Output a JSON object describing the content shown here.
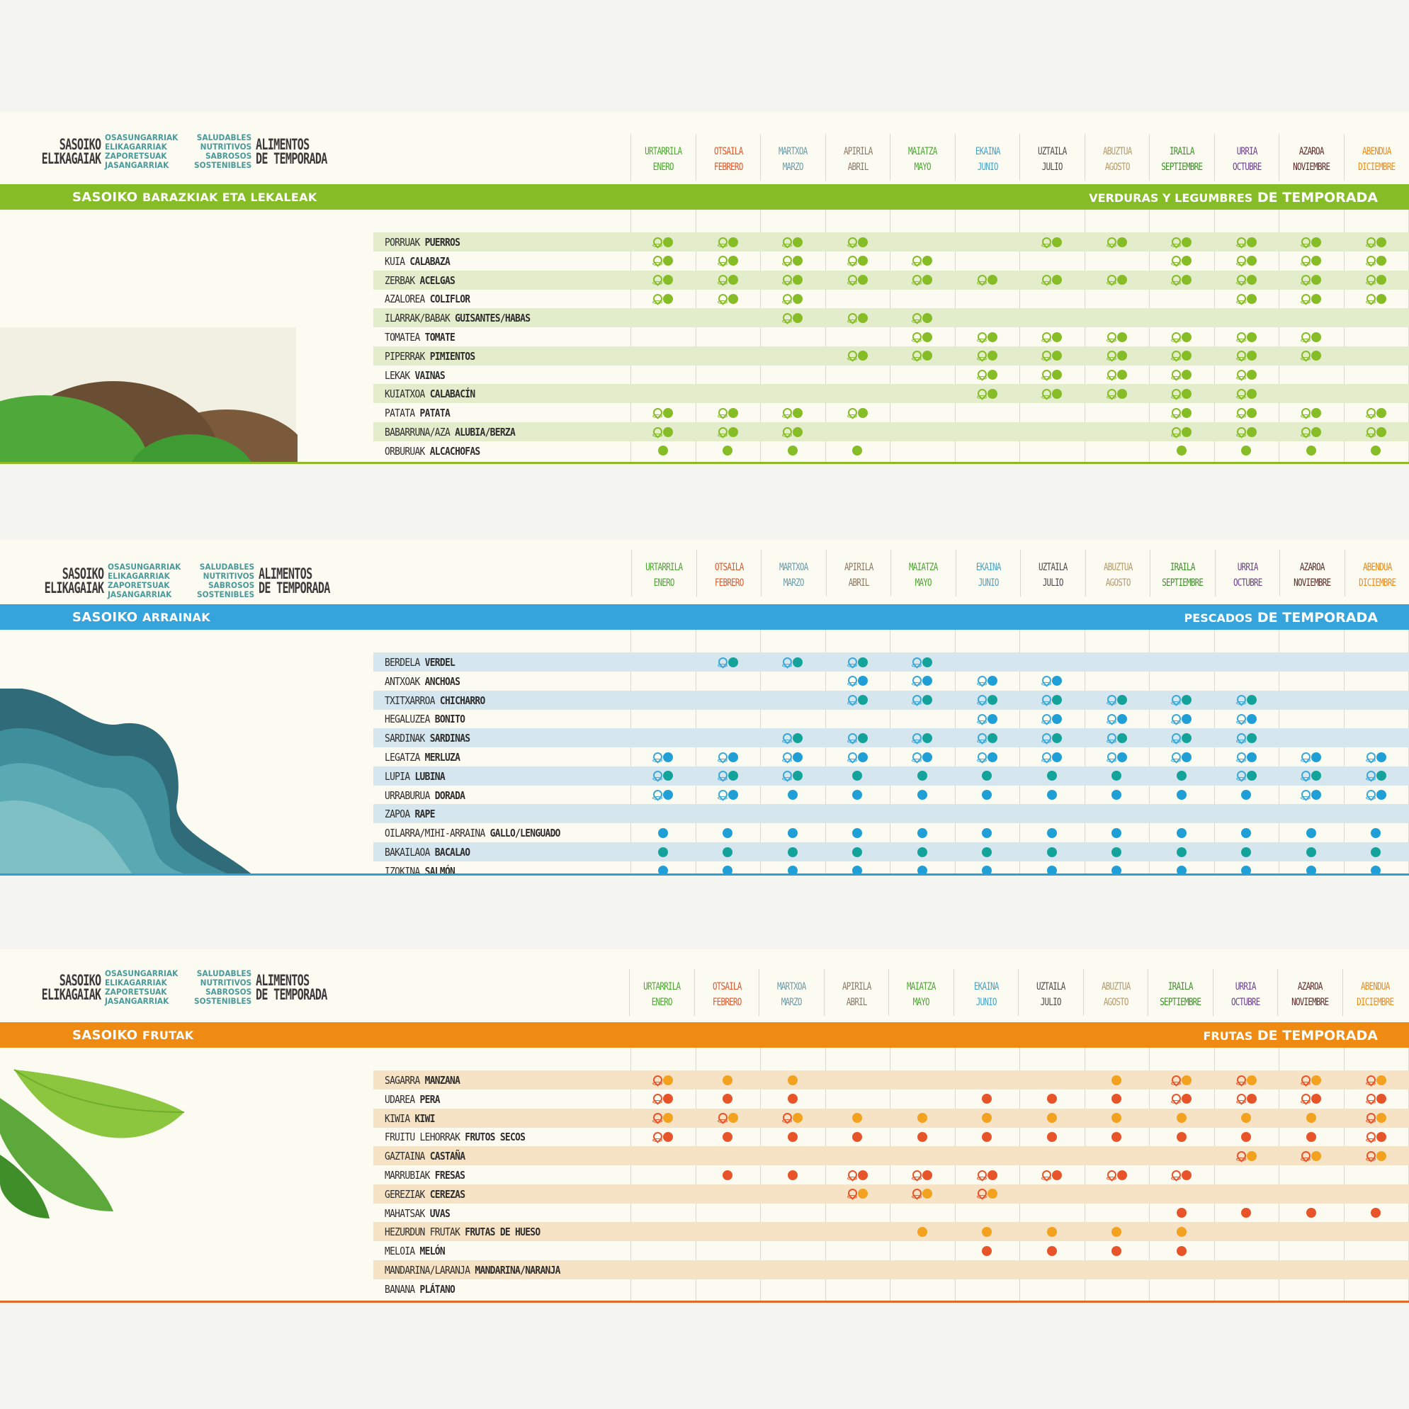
{
  "brand": {
    "title_eu_1": "SASOIKO",
    "title_eu_2": "ELIKAGAIAK",
    "adj_eu": [
      "OSASUNGARRIAK",
      "ELIKAGARRIAK",
      "ZAPORETSUAK",
      "JASANGARRIAK"
    ],
    "adj_es": [
      "SALUDABLES",
      "NUTRITIVOS",
      "SABROSOS",
      "SOSTENIBLES"
    ],
    "title_es_1": "ALIMENTOS",
    "title_es_2": "DE TEMPORADA"
  },
  "months": [
    {
      "eu": "URTARRILA",
      "es": "ENERO",
      "color": "#4aa630"
    },
    {
      "eu": "OTSAILA",
      "es": "FEBRERO",
      "color": "#e0562b"
    },
    {
      "eu": "MARTXOA",
      "es": "MARZO",
      "color": "#6a9aa8"
    },
    {
      "eu": "APIRILA",
      "es": "ABRIL",
      "color": "#8a7864"
    },
    {
      "eu": "MAIATZA",
      "es": "MAYO",
      "color": "#4aa630"
    },
    {
      "eu": "EKAINA",
      "es": "JUNIO",
      "color": "#4aa2c4"
    },
    {
      "eu": "UZTAILA",
      "es": "JULIO",
      "color": "#4a4a4a"
    },
    {
      "eu": "ABUZTUA",
      "es": "AGOSTO",
      "color": "#b59a6a"
    },
    {
      "eu": "IRAILA",
      "es": "SEPTIEMBRE",
      "color": "#3f8e2a"
    },
    {
      "eu": "URRIA",
      "es": "OCTUBRE",
      "color": "#6a3f8a"
    },
    {
      "eu": "AZAROA",
      "es": "NOVIEMBRE",
      "color": "#5a2a2a"
    },
    {
      "eu": "ABENDUA",
      "es": "DICIEMBRE",
      "color": "#e88a1a"
    }
  ],
  "sections": [
    {
      "band_left_a": "SASOIKO",
      "band_left_b": "BARAZKIAK ETA LEKALEAK",
      "band_right_a": "VERDURAS Y LEGUMBRES",
      "band_right_b": "DE TEMPORADA",
      "band_color": "#86bc25",
      "dot_color": "#86bc25",
      "pin_color": "#86bc25",
      "shade_color": "#e3edcc",
      "rows": [
        {
          "eu": "PORRUAK",
          "es": "PUERROS",
          "m": [
            2,
            2,
            2,
            2,
            0,
            0,
            2,
            2,
            2,
            2,
            2,
            2
          ]
        },
        {
          "eu": "KUIA",
          "es": "CALABAZA",
          "m": [
            2,
            2,
            2,
            2,
            2,
            0,
            0,
            0,
            2,
            2,
            2,
            2
          ]
        },
        {
          "eu": "ZERBAK",
          "es": "ACELGAS",
          "m": [
            2,
            2,
            2,
            2,
            2,
            2,
            2,
            2,
            2,
            2,
            2,
            2
          ]
        },
        {
          "eu": "AZALOREA",
          "es": "COLIFLOR",
          "m": [
            2,
            2,
            2,
            0,
            0,
            0,
            0,
            0,
            0,
            2,
            2,
            2
          ]
        },
        {
          "eu": "ILARRAK/BABAK",
          "es": "GUISANTES/HABAS",
          "m": [
            0,
            0,
            2,
            2,
            2,
            0,
            0,
            0,
            0,
            0,
            0,
            0
          ]
        },
        {
          "eu": "TOMATEA",
          "es": "TOMATE",
          "m": [
            0,
            0,
            0,
            0,
            2,
            2,
            2,
            2,
            2,
            2,
            2,
            0
          ]
        },
        {
          "eu": "PIPERRAK",
          "es": "PIMIENTOS",
          "m": [
            0,
            0,
            0,
            2,
            2,
            2,
            2,
            2,
            2,
            2,
            2,
            0
          ]
        },
        {
          "eu": "LEKAK",
          "es": "VAINAS",
          "m": [
            0,
            0,
            0,
            0,
            0,
            2,
            2,
            2,
            2,
            2,
            0,
            0
          ]
        },
        {
          "eu": "KUIATXOA",
          "es": "CALABACÍN",
          "m": [
            0,
            0,
            0,
            0,
            0,
            2,
            2,
            2,
            2,
            2,
            0,
            0
          ]
        },
        {
          "eu": "PATATA",
          "es": "PATATA",
          "m": [
            2,
            2,
            2,
            2,
            0,
            0,
            0,
            0,
            2,
            2,
            2,
            2
          ]
        },
        {
          "eu": "BABARRUNA/AZA",
          "es": "ALUBIA/BERZA",
          "m": [
            2,
            2,
            2,
            0,
            0,
            0,
            0,
            0,
            2,
            2,
            2,
            2
          ]
        },
        {
          "eu": "ORBURUAK",
          "es": "ALCACHOFAS",
          "m": [
            1,
            1,
            1,
            1,
            0,
            0,
            0,
            0,
            1,
            1,
            1,
            1
          ]
        }
      ]
    },
    {
      "band_left_a": "SASOIKO",
      "band_left_b": "ARRAINAK",
      "band_right_a": "PESCADOS",
      "band_right_b": "DE TEMPORADA",
      "band_color": "#35a4dc",
      "dot_color": "#1f9fd6",
      "dot_color_2": "#14a39a",
      "pin_color": "#3aa8d8",
      "shade_color": "#d5e6ee",
      "rows": [
        {
          "eu": "BERDELA",
          "es": "VERDEL",
          "m": [
            0,
            3,
            3,
            3,
            3,
            0,
            0,
            0,
            0,
            0,
            0,
            0
          ]
        },
        {
          "eu": "ANTXOAK",
          "es": "ANCHOAS",
          "m": [
            0,
            0,
            0,
            2,
            2,
            2,
            2,
            0,
            0,
            0,
            0,
            0
          ]
        },
        {
          "eu": "TXITXARROA",
          "es": "CHICHARRO",
          "m": [
            0,
            0,
            0,
            3,
            3,
            3,
            3,
            3,
            3,
            3,
            0,
            0
          ]
        },
        {
          "eu": "HEGALUZEA",
          "es": "BONITO",
          "m": [
            0,
            0,
            0,
            0,
            0,
            2,
            2,
            2,
            2,
            2,
            0,
            0
          ]
        },
        {
          "eu": "SARDINAK",
          "es": "SARDINAS",
          "m": [
            0,
            0,
            3,
            3,
            3,
            3,
            3,
            3,
            3,
            3,
            0,
            0
          ]
        },
        {
          "eu": "LEGATZA",
          "es": "MERLUZA",
          "m": [
            2,
            2,
            2,
            2,
            2,
            2,
            2,
            2,
            2,
            2,
            2,
            2
          ]
        },
        {
          "eu": "LUPIA",
          "es": "LUBINA",
          "m": [
            3,
            3,
            3,
            4,
            4,
            4,
            4,
            4,
            4,
            3,
            3,
            3
          ]
        },
        {
          "eu": "URRABURUA",
          "es": "DORADA",
          "m": [
            2,
            2,
            1,
            1,
            1,
            1,
            1,
            1,
            1,
            1,
            2,
            2
          ]
        },
        {
          "eu": "ZAPOA",
          "es": "RAPE",
          "m": [
            0,
            0,
            0,
            0,
            0,
            0,
            0,
            0,
            0,
            0,
            0,
            0
          ]
        },
        {
          "eu": "OILARRA/MIHI-ARRAINA",
          "es": "GALLO/LENGUADO",
          "m": [
            1,
            1,
            1,
            1,
            1,
            1,
            1,
            1,
            1,
            1,
            1,
            1
          ]
        },
        {
          "eu": "BAKAILAOA",
          "es": "BACALAO",
          "m": [
            4,
            4,
            4,
            4,
            4,
            4,
            4,
            4,
            4,
            4,
            4,
            4
          ]
        },
        {
          "eu": "IZOKINA",
          "es": "SALMÓN",
          "m": [
            1,
            1,
            1,
            1,
            1,
            1,
            1,
            1,
            1,
            1,
            1,
            1
          ]
        }
      ]
    },
    {
      "band_left_a": "SASOIKO",
      "band_left_b": "FRUTAK",
      "band_right_a": "FRUTAS",
      "band_right_b": "DE TEMPORADA",
      "band_color": "#ef8a12",
      "dot_color": "#f3a21f",
      "dot_color_2": "#e8542a",
      "pin_color": "#e8542a",
      "shade_color": "#f6e2c4",
      "rows": [
        {
          "eu": "SAGARRA",
          "es": "MANZANA",
          "m": [
            2,
            1,
            1,
            0,
            0,
            0,
            0,
            1,
            2,
            2,
            2,
            2
          ]
        },
        {
          "eu": "UDAREA",
          "es": "PERA",
          "m": [
            3,
            4,
            4,
            0,
            0,
            4,
            4,
            4,
            3,
            3,
            3,
            3
          ]
        },
        {
          "eu": "KIWIA",
          "es": "KIWI",
          "m": [
            2,
            2,
            2,
            1,
            1,
            1,
            1,
            1,
            1,
            1,
            1,
            2
          ]
        },
        {
          "eu": "FRUITU LEHORRAK",
          "es": "FRUTOS SECOS",
          "m": [
            3,
            4,
            4,
            4,
            4,
            4,
            4,
            4,
            4,
            4,
            4,
            3
          ]
        },
        {
          "eu": "GAZTAINA",
          "es": "CASTAÑA",
          "m": [
            0,
            0,
            0,
            0,
            0,
            0,
            0,
            0,
            0,
            2,
            2,
            2
          ]
        },
        {
          "eu": "MARRUBIAK",
          "es": "FRESAS",
          "m": [
            0,
            4,
            4,
            3,
            3,
            3,
            3,
            3,
            3,
            0,
            0,
            0
          ]
        },
        {
          "eu": "GEREZIAK",
          "es": "CEREZAS",
          "m": [
            0,
            0,
            0,
            2,
            2,
            2,
            0,
            0,
            0,
            0,
            0,
            0
          ]
        },
        {
          "eu": "MAHATSAK",
          "es": "UVAS",
          "m": [
            0,
            0,
            0,
            0,
            0,
            0,
            0,
            0,
            4,
            4,
            4,
            4
          ]
        },
        {
          "eu": "HEZURDUN FRUTAK",
          "es": "FRUTAS DE HUESO",
          "m": [
            0,
            0,
            0,
            0,
            1,
            1,
            1,
            1,
            1,
            0,
            0,
            0
          ]
        },
        {
          "eu": "MELOIA",
          "es": "MELÓN",
          "m": [
            0,
            0,
            0,
            0,
            0,
            4,
            4,
            4,
            4,
            0,
            0,
            0
          ]
        },
        {
          "eu": "MANDARINA/LARANJA",
          "es": "MANDARINA/NARANJA",
          "m": [
            0,
            0,
            0,
            0,
            0,
            0,
            0,
            0,
            0,
            0,
            0,
            0
          ]
        },
        {
          "eu": "BANANA",
          "es": "PLÁTANO",
          "m": [
            0,
            0,
            0,
            0,
            0,
            0,
            0,
            0,
            0,
            0,
            0,
            0
          ]
        }
      ]
    }
  ],
  "legend_meaning": {
    "dot": "season",
    "pin": "local"
  }
}
